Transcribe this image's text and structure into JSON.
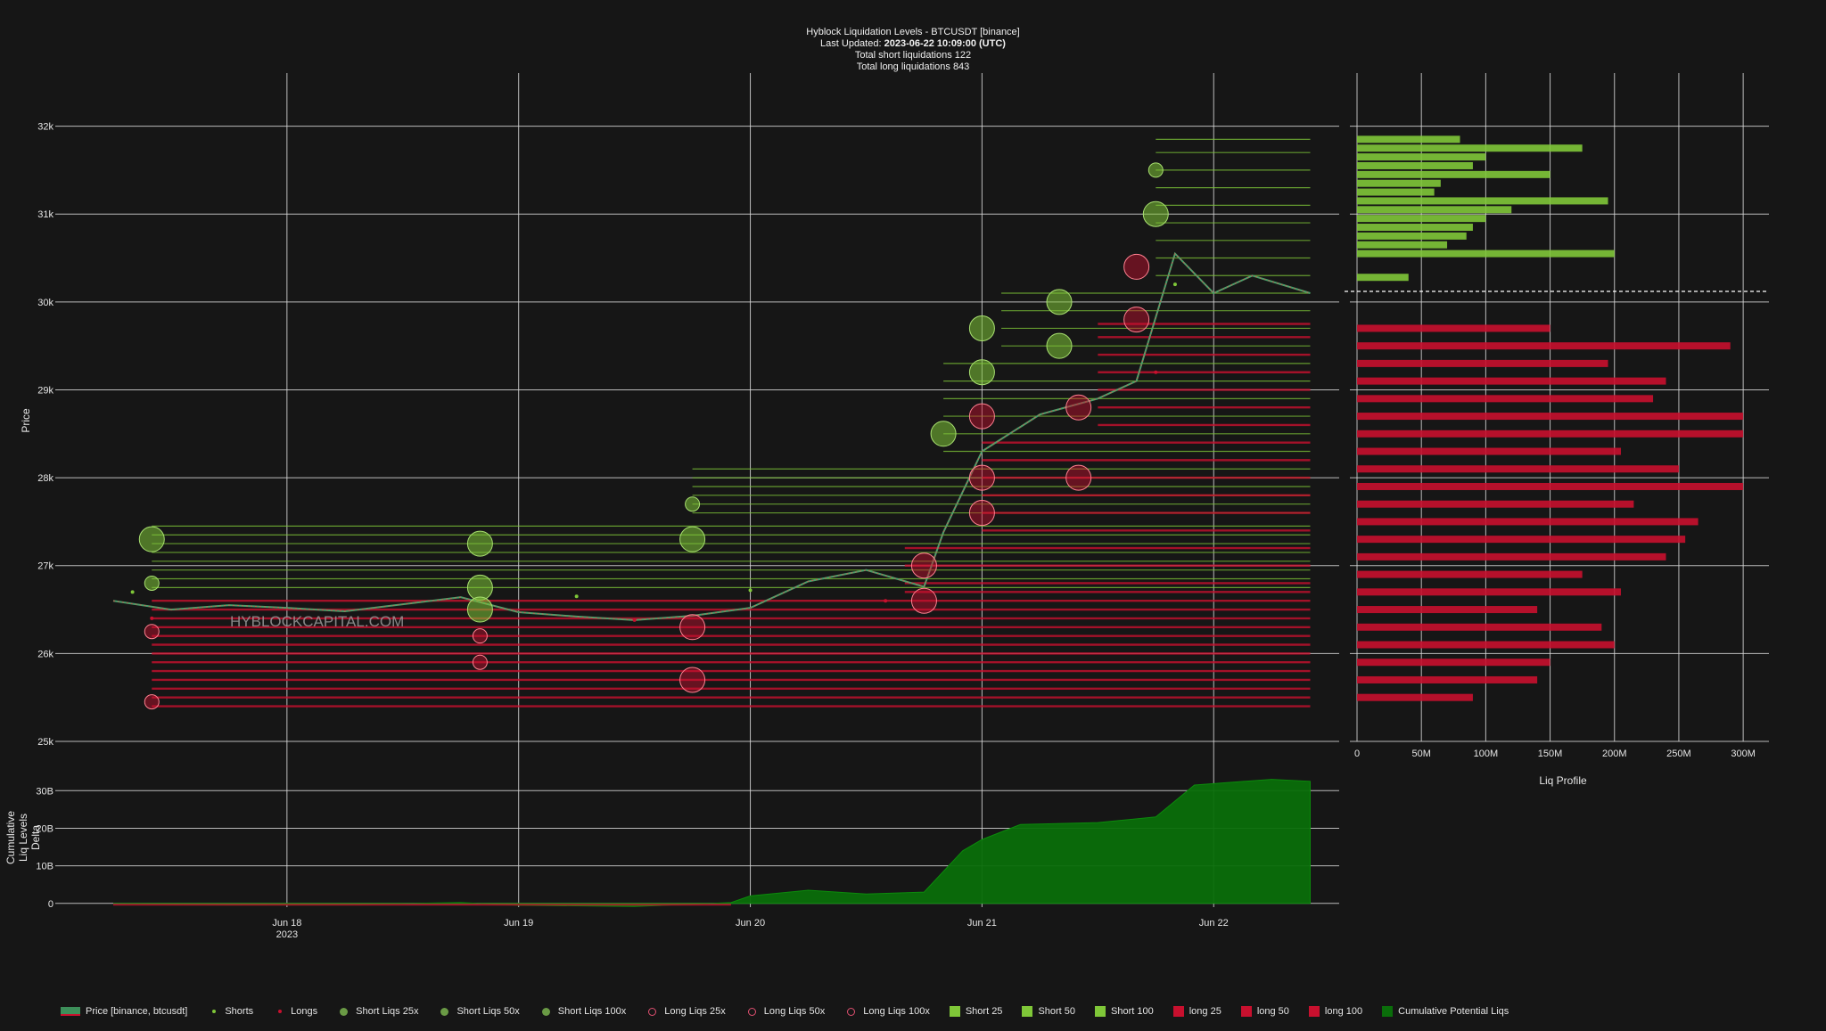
{
  "header": {
    "title": "Hyblock Liquidation Levels - BTCUSDT [binance]",
    "updated_label": "Last Updated:",
    "updated_value": "2023-06-22 10:09:00 (UTC)",
    "total_short": "Total short liquidations 122",
    "total_long": "Total long liquidations 843"
  },
  "watermark": "HYBLOCKCAPITAL.COM",
  "colors": {
    "background": "#161616",
    "grid": "#d8d8d8",
    "short": "#7fc738",
    "long": "#c8102e",
    "cumulative": "#0a6e0a"
  },
  "chart_data": [
    {
      "type": "line",
      "panel": "price",
      "ylabel": "Price",
      "y_ticks": [
        "25k",
        "26k",
        "27k",
        "28k",
        "29k",
        "30k",
        "31k",
        "32k"
      ],
      "ylim": [
        25000,
        32300
      ],
      "x_ticks": [
        "Jun 18\n2023",
        "Jun 19",
        "Jun 20",
        "Jun 21",
        "Jun 22"
      ],
      "xlim": [
        "2023-06-17 00:00",
        "2023-06-22 13:00"
      ],
      "series": [
        {
          "name": "Price [binance, btcusdt]",
          "x": [
            "2023-06-17 06:00",
            "2023-06-17 12:00",
            "2023-06-17 18:00",
            "2023-06-18 00:00",
            "2023-06-18 06:00",
            "2023-06-18 12:00",
            "2023-06-18 18:00",
            "2023-06-19 00:00",
            "2023-06-19 06:00",
            "2023-06-19 12:00",
            "2023-06-19 18:00",
            "2023-06-20 00:00",
            "2023-06-20 06:00",
            "2023-06-20 12:00",
            "2023-06-20 18:00",
            "2023-06-20 20:00",
            "2023-06-21 00:00",
            "2023-06-21 06:00",
            "2023-06-21 12:00",
            "2023-06-21 16:00",
            "2023-06-21 20:00",
            "2023-06-22 00:00",
            "2023-06-22 04:00",
            "2023-06-22 10:00"
          ],
          "y": [
            26600,
            26500,
            26550,
            26520,
            26480,
            26560,
            26640,
            26470,
            26420,
            26380,
            26430,
            26520,
            26820,
            26950,
            26760,
            27380,
            28300,
            28720,
            28900,
            29100,
            30550,
            30100,
            30300,
            30100
          ]
        },
        {
          "name": "Shorts",
          "x": [
            "2023-06-17 08:00",
            "2023-06-19 06:00",
            "2023-06-20 00:00",
            "2023-06-21 20:00"
          ],
          "y": [
            26700,
            26650,
            26720,
            30200
          ]
        },
        {
          "name": "Longs",
          "x": [
            "2023-06-17 10:00",
            "2023-06-19 12:00",
            "2023-06-20 14:00",
            "2023-06-21 18:00"
          ],
          "y": [
            26400,
            26380,
            26600,
            29200
          ]
        }
      ],
      "short_liq_levels": [
        27450,
        27350,
        27250,
        27150,
        27050,
        26950,
        26850,
        26750,
        27600,
        27700,
        27800,
        27900,
        28000,
        28100,
        28300,
        28500,
        28700,
        28900,
        29100,
        29300,
        29500,
        29700,
        29900,
        30100,
        30300,
        30500,
        30700,
        30900,
        31100,
        31300,
        31500,
        31700,
        31850
      ],
      "long_liq_levels": [
        25400,
        25500,
        25600,
        25700,
        25800,
        25900,
        26000,
        26100,
        26200,
        26300,
        26400,
        26500,
        26600,
        26700,
        26800,
        27000,
        27200,
        27400,
        27600,
        27800,
        28000,
        28200,
        28400,
        28600,
        28800,
        29000,
        29200,
        29400,
        29600,
        29750
      ],
      "short_liq_markers": [
        {
          "x": "2023-06-17 10:00",
          "y": 27300,
          "size": "100x"
        },
        {
          "x": "2023-06-17 10:00",
          "y": 26800,
          "size": "50x"
        },
        {
          "x": "2023-06-18 20:00",
          "y": 27250,
          "size": "100x"
        },
        {
          "x": "2023-06-18 20:00",
          "y": 26750,
          "size": "100x"
        },
        {
          "x": "2023-06-18 20:00",
          "y": 26500,
          "size": "100x"
        },
        {
          "x": "2023-06-19 18:00",
          "y": 27700,
          "size": "50x"
        },
        {
          "x": "2023-06-19 18:00",
          "y": 27300,
          "size": "100x"
        },
        {
          "x": "2023-06-20 20:00",
          "y": 28500,
          "size": "100x"
        },
        {
          "x": "2023-06-21 00:00",
          "y": 29700,
          "size": "100x"
        },
        {
          "x": "2023-06-21 00:00",
          "y": 29200,
          "size": "100x"
        },
        {
          "x": "2023-06-21 08:00",
          "y": 30000,
          "size": "100x"
        },
        {
          "x": "2023-06-21 08:00",
          "y": 29500,
          "size": "100x"
        },
        {
          "x": "2023-06-21 18:00",
          "y": 31000,
          "size": "100x"
        },
        {
          "x": "2023-06-21 18:00",
          "y": 31500,
          "size": "50x"
        }
      ],
      "long_liq_markers": [
        {
          "x": "2023-06-17 10:00",
          "y": 26250,
          "size": "50x"
        },
        {
          "x": "2023-06-17 10:00",
          "y": 25450,
          "size": "50x"
        },
        {
          "x": "2023-06-18 20:00",
          "y": 26200,
          "size": "50x"
        },
        {
          "x": "2023-06-18 20:00",
          "y": 25900,
          "size": "50x"
        },
        {
          "x": "2023-06-19 18:00",
          "y": 26300,
          "size": "100x"
        },
        {
          "x": "2023-06-19 18:00",
          "y": 25700,
          "size": "100x"
        },
        {
          "x": "2023-06-20 18:00",
          "y": 27000,
          "size": "100x"
        },
        {
          "x": "2023-06-20 18:00",
          "y": 26600,
          "size": "100x"
        },
        {
          "x": "2023-06-21 00:00",
          "y": 28700,
          "size": "100x"
        },
        {
          "x": "2023-06-21 00:00",
          "y": 28000,
          "size": "100x"
        },
        {
          "x": "2023-06-21 00:00",
          "y": 27600,
          "size": "100x"
        },
        {
          "x": "2023-06-21 10:00",
          "y": 28800,
          "size": "100x"
        },
        {
          "x": "2023-06-21 10:00",
          "y": 28000,
          "size": "100x"
        },
        {
          "x": "2023-06-21 16:00",
          "y": 29800,
          "size": "100x"
        },
        {
          "x": "2023-06-21 16:00",
          "y": 30400,
          "size": "100x"
        }
      ]
    },
    {
      "type": "bar",
      "panel": "liq_profile",
      "orientation": "horizontal",
      "xlabel": "Liq Profile",
      "x_ticks": [
        "0",
        "50M",
        "100M",
        "150M",
        "200M",
        "250M",
        "300M"
      ],
      "xlim": [
        0,
        320000000
      ],
      "current_price_line": 30120,
      "series": [
        {
          "name": "Short",
          "y": [
            31850,
            31750,
            31650,
            31550,
            31450,
            31350,
            31250,
            31150,
            31050,
            30950,
            30850,
            30750,
            30650,
            30550,
            30280
          ],
          "x": [
            80000000,
            175000000,
            100000000,
            90000000,
            150000000,
            65000000,
            60000000,
            195000000,
            120000000,
            100000000,
            90000000,
            85000000,
            70000000,
            200000000,
            40000000
          ]
        },
        {
          "name": "long",
          "y": [
            29700,
            29500,
            29300,
            29100,
            28900,
            28700,
            28500,
            28300,
            28100,
            27900,
            27700,
            27500,
            27300,
            27100,
            26900,
            26700,
            26500,
            26300,
            26100,
            25900,
            25700,
            25500
          ],
          "x": [
            150000000,
            290000000,
            195000000,
            240000000,
            230000000,
            300000000,
            300000000,
            205000000,
            250000000,
            300000000,
            215000000,
            265000000,
            255000000,
            240000000,
            175000000,
            205000000,
            140000000,
            190000000,
            200000000,
            150000000,
            140000000,
            90000000
          ]
        }
      ]
    },
    {
      "type": "area",
      "panel": "cumulative",
      "ylabel": "Cumulative\nLiq Levels\nDelta",
      "y_ticks": [
        "0",
        "10B",
        "20B",
        "30B"
      ],
      "ylim": [
        -1000000000,
        36000000000
      ],
      "series": [
        {
          "name": "Cumulative Potential Liqs",
          "x": [
            "2023-06-17 06:00",
            "2023-06-17 18:00",
            "2023-06-18 06:00",
            "2023-06-18 18:00",
            "2023-06-19 00:00",
            "2023-06-19 12:00",
            "2023-06-19 22:00",
            "2023-06-20 00:00",
            "2023-06-20 06:00",
            "2023-06-20 12:00",
            "2023-06-20 18:00",
            "2023-06-20 22:00",
            "2023-06-21 00:00",
            "2023-06-21 04:00",
            "2023-06-21 12:00",
            "2023-06-21 18:00",
            "2023-06-21 22:00",
            "2023-06-22 06:00",
            "2023-06-22 10:00"
          ],
          "y": [
            0,
            -400000000,
            -300000000,
            200000000,
            -500000000,
            -800000000,
            200000000,
            2000000000,
            3500000000,
            2500000000,
            3000000000,
            14000000000,
            17000000000,
            21000000000,
            21500000000,
            23000000000,
            31500000000,
            33000000000,
            32500000000
          ]
        }
      ]
    }
  ],
  "legend": [
    {
      "label": "Price [binance, btcusdt]",
      "symbol": "line",
      "color": "#3d8f5a"
    },
    {
      "label": "Shorts",
      "symbol": "dot",
      "color": "#7fc738"
    },
    {
      "label": "Longs",
      "symbol": "dot",
      "color": "#c8102e"
    },
    {
      "label": "Short Liqs 25x",
      "symbol": "circle-fill",
      "color": "#6a9a45"
    },
    {
      "label": "Short Liqs 50x",
      "symbol": "circle-fill",
      "color": "#6a9a45"
    },
    {
      "label": "Short Liqs 100x",
      "symbol": "circle-fill",
      "color": "#6a9a45"
    },
    {
      "label": "Long Liqs 25x",
      "symbol": "circle-open",
      "color": "#e05070"
    },
    {
      "label": "Long Liqs 50x",
      "symbol": "circle-open",
      "color": "#e05070"
    },
    {
      "label": "Long Liqs 100x",
      "symbol": "circle-open",
      "color": "#e05070"
    },
    {
      "label": "Short 25",
      "symbol": "square",
      "color": "#7fc738"
    },
    {
      "label": "Short 50",
      "symbol": "square",
      "color": "#7fc738"
    },
    {
      "label": "Short 100",
      "symbol": "square",
      "color": "#7fc738"
    },
    {
      "label": "long 25",
      "symbol": "square",
      "color": "#c8102e"
    },
    {
      "label": "long 50",
      "symbol": "square",
      "color": "#c8102e"
    },
    {
      "label": "long 100",
      "symbol": "square",
      "color": "#c8102e"
    },
    {
      "label": "Cumulative Potential Liqs",
      "symbol": "square",
      "color": "#0a6e0a"
    }
  ]
}
